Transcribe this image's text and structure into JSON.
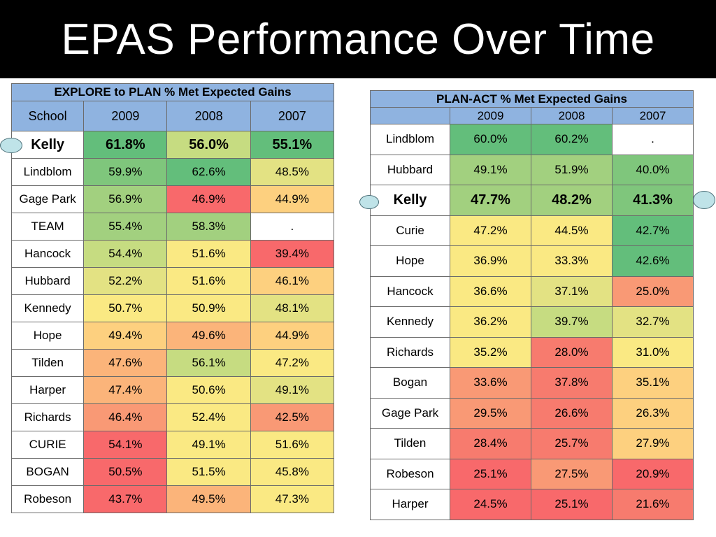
{
  "title": "EPAS Performance Over Time",
  "colors": {
    "d1": "#63be7b",
    "d2": "#7fc67c",
    "d3": "#a2d07f",
    "d4": "#c6dc81",
    "y1": "#e3e283",
    "y2": "#fae983",
    "o1": "#fdd07f",
    "o2": "#fbb47a",
    "o3": "#f99975",
    "r1": "#f77b6e",
    "r2": "#f8696b",
    "white": "#ffffff"
  },
  "explore_plan": {
    "caption": "EXPLORE to PLAN % Met Expected Gains",
    "headers": [
      "School",
      "2009",
      "2008",
      "2007"
    ],
    "rows": [
      {
        "school": "Kelly",
        "highlight": true,
        "cells": [
          {
            "v": "61.8%",
            "c": "d1"
          },
          {
            "v": "56.0%",
            "c": "d4"
          },
          {
            "v": "55.1%",
            "c": "d1"
          }
        ]
      },
      {
        "school": "Lindblom",
        "cells": [
          {
            "v": "59.9%",
            "c": "d2"
          },
          {
            "v": "62.6%",
            "c": "d1"
          },
          {
            "v": "48.5%",
            "c": "y1"
          }
        ]
      },
      {
        "school": "Gage Park",
        "cells": [
          {
            "v": "56.9%",
            "c": "d3"
          },
          {
            "v": "46.9%",
            "c": "r2"
          },
          {
            "v": "44.9%",
            "c": "o1"
          }
        ]
      },
      {
        "school": "TEAM",
        "cells": [
          {
            "v": "55.4%",
            "c": "d3"
          },
          {
            "v": "58.3%",
            "c": "d3"
          },
          {
            "v": ".",
            "c": "white"
          }
        ]
      },
      {
        "school": "Hancock",
        "cells": [
          {
            "v": "54.4%",
            "c": "d4"
          },
          {
            "v": "51.6%",
            "c": "y2"
          },
          {
            "v": "39.4%",
            "c": "r2"
          }
        ]
      },
      {
        "school": "Hubbard",
        "cells": [
          {
            "v": "52.2%",
            "c": "y1"
          },
          {
            "v": "51.6%",
            "c": "y2"
          },
          {
            "v": "46.1%",
            "c": "o1"
          }
        ]
      },
      {
        "school": "Kennedy",
        "cells": [
          {
            "v": "50.7%",
            "c": "y2"
          },
          {
            "v": "50.9%",
            "c": "y2"
          },
          {
            "v": "48.1%",
            "c": "y1"
          }
        ]
      },
      {
        "school": "Hope",
        "cells": [
          {
            "v": "49.4%",
            "c": "o1"
          },
          {
            "v": "49.6%",
            "c": "o2"
          },
          {
            "v": "44.9%",
            "c": "o1"
          }
        ]
      },
      {
        "school": "Tilden",
        "cells": [
          {
            "v": "47.6%",
            "c": "o2"
          },
          {
            "v": "56.1%",
            "c": "d4"
          },
          {
            "v": "47.2%",
            "c": "y2"
          }
        ]
      },
      {
        "school": "Harper",
        "cells": [
          {
            "v": "47.4%",
            "c": "o2"
          },
          {
            "v": "50.6%",
            "c": "y2"
          },
          {
            "v": "49.1%",
            "c": "y1"
          }
        ]
      },
      {
        "school": "Richards",
        "cells": [
          {
            "v": "46.4%",
            "c": "o3"
          },
          {
            "v": "52.4%",
            "c": "y2"
          },
          {
            "v": "42.5%",
            "c": "o3"
          }
        ]
      },
      {
        "school": "CURIE",
        "cells": [
          {
            "v": "54.1%",
            "c": "r2"
          },
          {
            "v": "49.1%",
            "c": "y2"
          },
          {
            "v": "51.6%",
            "c": "y2"
          }
        ]
      },
      {
        "school": "BOGAN",
        "cells": [
          {
            "v": "50.5%",
            "c": "r2"
          },
          {
            "v": "51.5%",
            "c": "y2"
          },
          {
            "v": "45.8%",
            "c": "y2"
          }
        ]
      },
      {
        "school": "Robeson",
        "cells": [
          {
            "v": "43.7%",
            "c": "r2"
          },
          {
            "v": "49.5%",
            "c": "o2"
          },
          {
            "v": "47.3%",
            "c": "y2"
          }
        ]
      }
    ]
  },
  "plan_act": {
    "caption": "PLAN-ACT % Met Expected Gains",
    "headers": [
      "",
      "2009",
      "2008",
      "2007"
    ],
    "rows": [
      {
        "school": "Lindblom",
        "cells": [
          {
            "v": "60.0%",
            "c": "d1"
          },
          {
            "v": "60.2%",
            "c": "d1"
          },
          {
            "v": ".",
            "c": "white"
          }
        ]
      },
      {
        "school": "Hubbard",
        "cells": [
          {
            "v": "49.1%",
            "c": "d3"
          },
          {
            "v": "51.9%",
            "c": "d3"
          },
          {
            "v": "40.0%",
            "c": "d2"
          }
        ]
      },
      {
        "school": "Kelly",
        "highlight": true,
        "cells": [
          {
            "v": "47.7%",
            "c": "d3"
          },
          {
            "v": "48.2%",
            "c": "d3"
          },
          {
            "v": "41.3%",
            "c": "d2"
          }
        ]
      },
      {
        "school": "Curie",
        "cells": [
          {
            "v": "47.2%",
            "c": "y2"
          },
          {
            "v": "44.5%",
            "c": "y2"
          },
          {
            "v": "42.7%",
            "c": "d1"
          }
        ]
      },
      {
        "school": "Hope",
        "cells": [
          {
            "v": "36.9%",
            "c": "y2"
          },
          {
            "v": "33.3%",
            "c": "y2"
          },
          {
            "v": "42.6%",
            "c": "d1"
          }
        ]
      },
      {
        "school": "Hancock",
        "cells": [
          {
            "v": "36.6%",
            "c": "y2"
          },
          {
            "v": "37.1%",
            "c": "y1"
          },
          {
            "v": "25.0%",
            "c": "o3"
          }
        ]
      },
      {
        "school": "Kennedy",
        "cells": [
          {
            "v": "36.2%",
            "c": "y2"
          },
          {
            "v": "39.7%",
            "c": "d4"
          },
          {
            "v": "32.7%",
            "c": "y1"
          }
        ]
      },
      {
        "school": "Richards",
        "cells": [
          {
            "v": "35.2%",
            "c": "y2"
          },
          {
            "v": "28.0%",
            "c": "r1"
          },
          {
            "v": "31.0%",
            "c": "y2"
          }
        ]
      },
      {
        "school": "Bogan",
        "cells": [
          {
            "v": "33.6%",
            "c": "o3"
          },
          {
            "v": "37.8%",
            "c": "r1"
          },
          {
            "v": "35.1%",
            "c": "o1"
          }
        ]
      },
      {
        "school": "Gage Park",
        "cells": [
          {
            "v": "29.5%",
            "c": "o3"
          },
          {
            "v": "26.6%",
            "c": "r1"
          },
          {
            "v": "26.3%",
            "c": "o1"
          }
        ]
      },
      {
        "school": "Tilden",
        "cells": [
          {
            "v": "28.4%",
            "c": "r1"
          },
          {
            "v": "25.7%",
            "c": "r1"
          },
          {
            "v": "27.9%",
            "c": "o1"
          }
        ]
      },
      {
        "school": "Robeson",
        "cells": [
          {
            "v": "25.1%",
            "c": "r2"
          },
          {
            "v": "27.5%",
            "c": "o3"
          },
          {
            "v": "20.9%",
            "c": "r2"
          }
        ]
      },
      {
        "school": "Harper",
        "cells": [
          {
            "v": "24.5%",
            "c": "r2"
          },
          {
            "v": "25.1%",
            "c": "r2"
          },
          {
            "v": "21.6%",
            "c": "r1"
          }
        ]
      }
    ]
  }
}
